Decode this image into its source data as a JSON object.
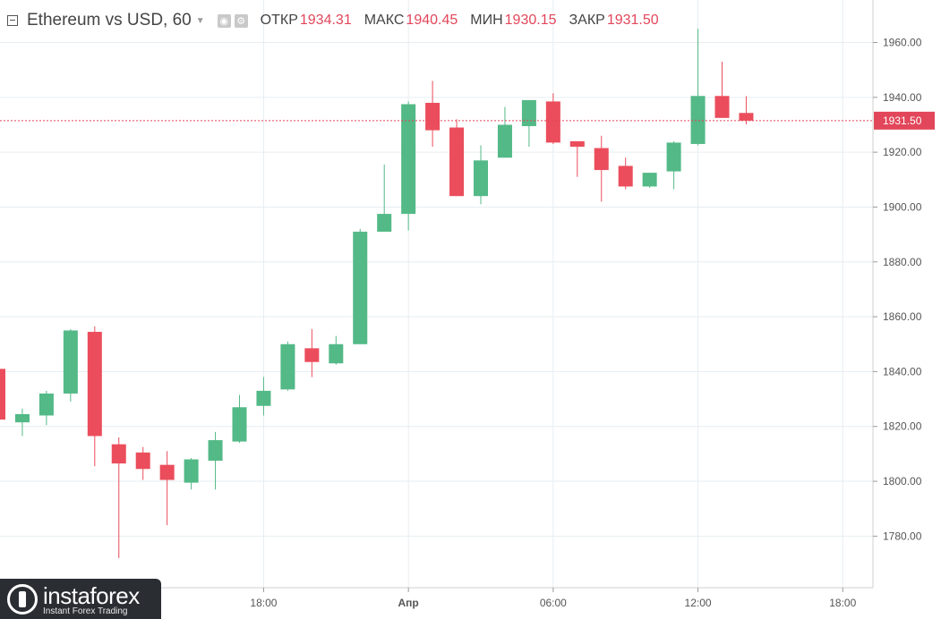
{
  "header": {
    "symbol": "Ethereum vs USD, 60",
    "open_label": "ОТКР",
    "open_value": "1934.31",
    "high_label": "МАКС",
    "high_value": "1940.45",
    "low_label": "МИН",
    "low_value": "1930.15",
    "close_label": "ЗАКР",
    "close_value": "1931.50"
  },
  "logo": {
    "name": "instaforex",
    "tagline": "Instant Forex Trading"
  },
  "chart_data": {
    "type": "candlestick",
    "interval": "60",
    "ylim": [
      1767,
      1968
    ],
    "y_ticks": [
      1780,
      1800,
      1820,
      1840,
      1860,
      1880,
      1900,
      1920,
      1940,
      1960
    ],
    "y_tick_labels": [
      "1780.00",
      "1800.00",
      "1820.00",
      "1840.00",
      "1860.00",
      "1880.00",
      "1900.00",
      "1920.00",
      "1940.00",
      "1960.00"
    ],
    "x_tick_labels": [
      "18:00",
      "Апр",
      "06:00",
      "12:00",
      "18:00"
    ],
    "x_tick_bar_index": [
      11,
      17,
      23,
      29,
      35
    ],
    "last_price": 1931.5,
    "last_price_label": "1931.50",
    "up_color": "#53b987",
    "down_color": "#eb4d5c",
    "grid": true,
    "candles": [
      {
        "o": 1841.0,
        "h": 1841.0,
        "l": 1822.5,
        "c": 1822.5
      },
      {
        "o": 1821.5,
        "h": 1826.5,
        "l": 1816.5,
        "c": 1824.5
      },
      {
        "o": 1824.0,
        "h": 1833.0,
        "l": 1820.5,
        "c": 1832.0
      },
      {
        "o": 1832.0,
        "h": 1855.5,
        "l": 1829.0,
        "c": 1855.0
      },
      {
        "o": 1854.5,
        "h": 1856.5,
        "l": 1805.5,
        "c": 1816.5
      },
      {
        "o": 1813.5,
        "h": 1816.0,
        "l": 1772.0,
        "c": 1806.5
      },
      {
        "o": 1810.5,
        "h": 1812.5,
        "l": 1800.5,
        "c": 1804.5
      },
      {
        "o": 1806.0,
        "h": 1811.0,
        "l": 1784.0,
        "c": 1800.5
      },
      {
        "o": 1799.5,
        "h": 1808.5,
        "l": 1797.0,
        "c": 1808.0
      },
      {
        "o": 1807.5,
        "h": 1818.0,
        "l": 1797.0,
        "c": 1815.0
      },
      {
        "o": 1814.5,
        "h": 1831.5,
        "l": 1814.0,
        "c": 1827.0
      },
      {
        "o": 1827.5,
        "h": 1838.0,
        "l": 1824.0,
        "c": 1833.0
      },
      {
        "o": 1833.5,
        "h": 1851.0,
        "l": 1833.0,
        "c": 1850.0
      },
      {
        "o": 1848.5,
        "h": 1855.5,
        "l": 1838.0,
        "c": 1843.5
      },
      {
        "o": 1843.0,
        "h": 1853.0,
        "l": 1842.5,
        "c": 1850.0
      },
      {
        "o": 1850.0,
        "h": 1892.0,
        "l": 1850.0,
        "c": 1891.0
      },
      {
        "o": 1891.0,
        "h": 1915.5,
        "l": 1891.0,
        "c": 1897.5
      },
      {
        "o": 1897.5,
        "h": 1938.5,
        "l": 1891.5,
        "c": 1937.5
      },
      {
        "o": 1938.0,
        "h": 1946.0,
        "l": 1922.0,
        "c": 1928.0
      },
      {
        "o": 1929.0,
        "h": 1932.0,
        "l": 1904.0,
        "c": 1904.0
      },
      {
        "o": 1904.0,
        "h": 1922.5,
        "l": 1901.0,
        "c": 1917.0
      },
      {
        "o": 1918.0,
        "h": 1936.5,
        "l": 1918.0,
        "c": 1930.0
      },
      {
        "o": 1929.5,
        "h": 1939.0,
        "l": 1922.0,
        "c": 1939.0
      },
      {
        "o": 1938.5,
        "h": 1941.5,
        "l": 1923.0,
        "c": 1923.5
      },
      {
        "o": 1924.0,
        "h": 1924.0,
        "l": 1911.0,
        "c": 1922.0
      },
      {
        "o": 1921.5,
        "h": 1926.0,
        "l": 1902.0,
        "c": 1913.5
      },
      {
        "o": 1915.0,
        "h": 1918.0,
        "l": 1906.5,
        "c": 1907.5
      },
      {
        "o": 1907.5,
        "h": 1912.5,
        "l": 1907.0,
        "c": 1912.5
      },
      {
        "o": 1913.0,
        "h": 1924.0,
        "l": 1906.5,
        "c": 1923.5
      },
      {
        "o": 1923.0,
        "h": 1965.0,
        "l": 1922.5,
        "c": 1940.5
      },
      {
        "o": 1940.5,
        "h": 1953.0,
        "l": 1932.5,
        "c": 1932.5
      },
      {
        "o": 1934.31,
        "h": 1940.45,
        "l": 1930.15,
        "c": 1931.5
      }
    ]
  }
}
